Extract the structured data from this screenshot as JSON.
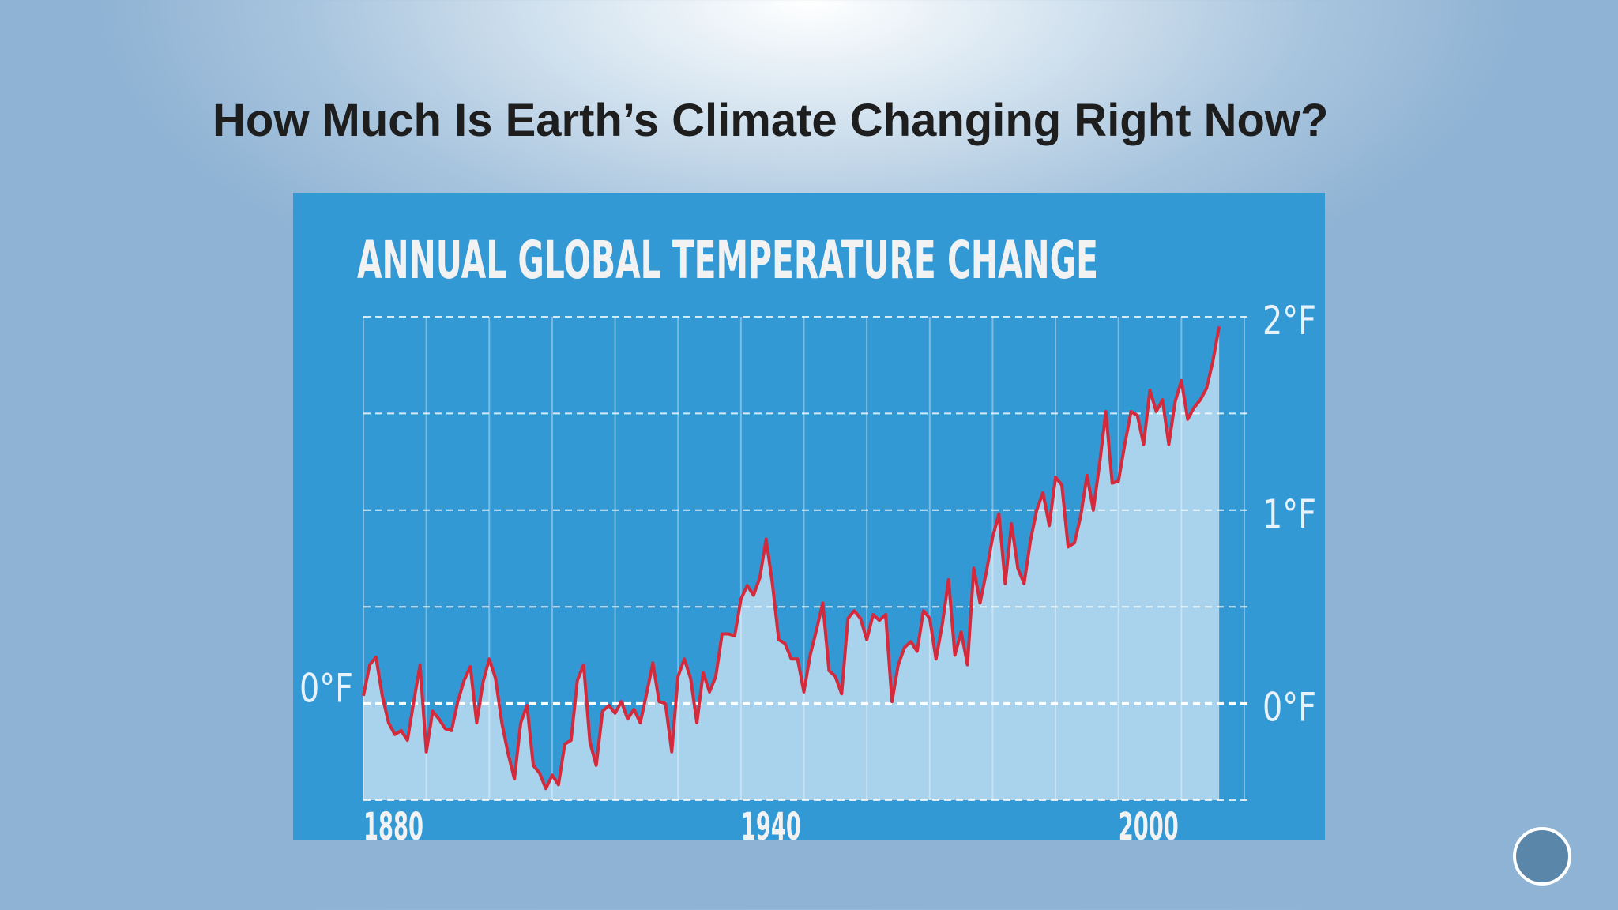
{
  "slide_title": "How Much Is Earth’s Climate Changing Right Now?",
  "chart_data": {
    "type": "line",
    "title": "ANNUAL GLOBAL TEMPERATURE CHANGE",
    "x": [
      1880,
      1881,
      1882,
      1883,
      1884,
      1885,
      1886,
      1887,
      1888,
      1889,
      1890,
      1891,
      1892,
      1893,
      1894,
      1895,
      1896,
      1897,
      1898,
      1899,
      1900,
      1901,
      1902,
      1903,
      1904,
      1905,
      1906,
      1907,
      1908,
      1909,
      1910,
      1911,
      1912,
      1913,
      1914,
      1915,
      1916,
      1917,
      1918,
      1919,
      1920,
      1921,
      1922,
      1923,
      1924,
      1925,
      1926,
      1927,
      1928,
      1929,
      1930,
      1931,
      1932,
      1933,
      1934,
      1935,
      1936,
      1937,
      1938,
      1939,
      1940,
      1941,
      1942,
      1943,
      1944,
      1945,
      1946,
      1947,
      1948,
      1949,
      1950,
      1951,
      1952,
      1953,
      1954,
      1955,
      1956,
      1957,
      1958,
      1959,
      1960,
      1961,
      1962,
      1963,
      1964,
      1965,
      1966,
      1967,
      1968,
      1969,
      1970,
      1971,
      1972,
      1973,
      1974,
      1975,
      1976,
      1977,
      1978,
      1979,
      1980,
      1981,
      1982,
      1983,
      1984,
      1985,
      1986,
      1987,
      1988,
      1989,
      1990,
      1991,
      1992,
      1993,
      1994,
      1995,
      1996,
      1997,
      1998,
      1999,
      2000,
      2001,
      2002,
      2003,
      2004,
      2005,
      2006,
      2007,
      2008,
      2009,
      2010,
      2011,
      2012,
      2013,
      2014,
      2015,
      2016
    ],
    "series": [
      {
        "color": "#d42a3c",
        "fill": "#a9d3ec",
        "values": [
          0.04,
          0.2,
          0.24,
          0.04,
          -0.1,
          -0.16,
          -0.14,
          -0.19,
          0.01,
          0.2,
          -0.25,
          -0.04,
          -0.08,
          -0.13,
          -0.14,
          0.01,
          0.12,
          0.19,
          -0.1,
          0.11,
          0.23,
          0.13,
          -0.1,
          -0.26,
          -0.39,
          -0.1,
          -0.01,
          -0.32,
          -0.36,
          -0.44,
          -0.37,
          -0.42,
          -0.21,
          -0.19,
          0.12,
          0.2,
          -0.2,
          -0.32,
          -0.04,
          -0.01,
          -0.05,
          0.01,
          -0.08,
          -0.03,
          -0.1,
          0.05,
          0.21,
          0.01,
          0,
          -0.25,
          0.14,
          0.23,
          0.13,
          -0.1,
          0.16,
          0.06,
          0.14,
          0.36,
          0.36,
          0.35,
          0.54,
          0.61,
          0.56,
          0.65,
          0.85,
          0.62,
          0.33,
          0.31,
          0.23,
          0.23,
          0.06,
          0.25,
          0.38,
          0.52,
          0.17,
          0.14,
          0.05,
          0.44,
          0.48,
          0.44,
          0.33,
          0.46,
          0.43,
          0.46,
          0.01,
          0.2,
          0.29,
          0.32,
          0.27,
          0.48,
          0.44,
          0.23,
          0.41,
          0.64,
          0.25,
          0.37,
          0.2,
          0.7,
          0.52,
          0.68,
          0.86,
          0.98,
          0.62,
          0.93,
          0.7,
          0.62,
          0.84,
          1.0,
          1.09,
          0.92,
          1.17,
          1.13,
          0.81,
          0.83,
          0.97,
          1.18,
          1.0,
          1.24,
          1.51,
          1.14,
          1.15,
          1.34,
          1.51,
          1.49,
          1.34,
          1.62,
          1.51,
          1.57,
          1.34,
          1.56,
          1.67,
          1.47,
          1.53,
          1.57,
          1.63,
          1.77,
          1.95
        ]
      }
    ],
    "xlim": [
      1880,
      2020
    ],
    "xticks": [
      1880,
      1940,
      2000
    ],
    "xgrid": [
      1880,
      1890,
      1900,
      1910,
      1920,
      1930,
      1940,
      1950,
      1960,
      1970,
      1980,
      1990,
      2000,
      2010,
      2020
    ],
    "ylim": [
      -0.5,
      2.1
    ],
    "yticks": [
      {
        "value": 0,
        "label": "0°F"
      },
      {
        "value": 1,
        "label": "1°F"
      },
      {
        "value": 2,
        "label": "2°F"
      }
    ],
    "ygrid": [
      -0.5,
      0,
      0.5,
      1,
      1.5,
      2
    ],
    "background": "#3399d5"
  }
}
